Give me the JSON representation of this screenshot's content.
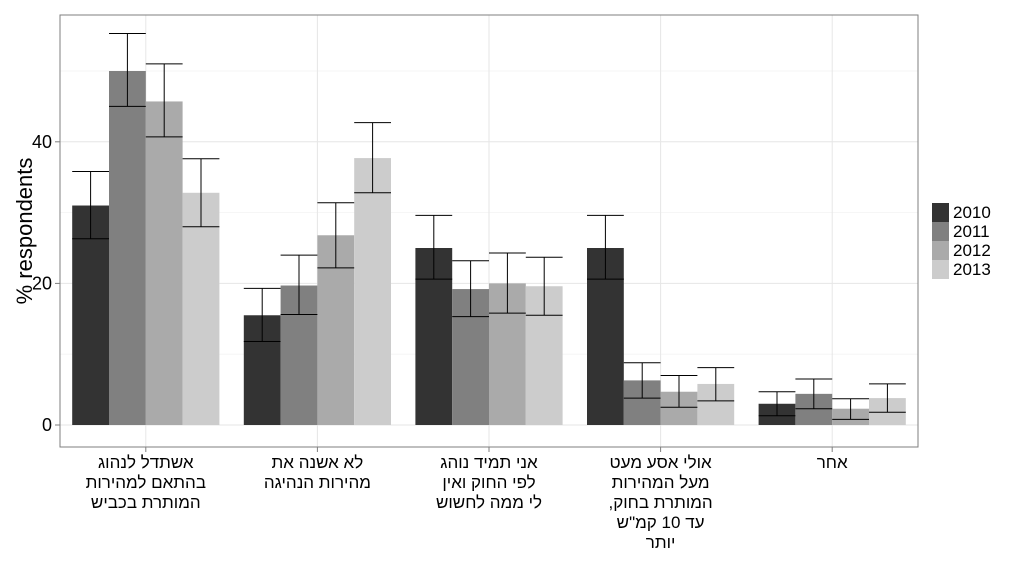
{
  "chart_data": {
    "type": "bar",
    "title": "",
    "xlabel": "",
    "ylabel": "% respondents",
    "ylim": [
      0,
      58
    ],
    "yticks": [
      0,
      20,
      40
    ],
    "grid": true,
    "legend_position": "right",
    "categories": [
      [
        "אשתדל לנהוג",
        "בהתאם למהירות",
        "המותרת בכביש"
      ],
      [
        "לא אשנה את",
        "מהירות הנהיגה"
      ],
      [
        "אני תמיד נוהג",
        "לפי החוק ואין",
        "לי ממה לחשוש"
      ],
      [
        "אולי אסע מעט",
        "מעל המהירות",
        "המותרת בחוק,",
        "עד 10 קמ\"ש",
        "יותר"
      ],
      [
        "אחר"
      ]
    ],
    "series": [
      {
        "name": "2010",
        "color": "#333333",
        "values": [
          31,
          15.5,
          25,
          25,
          3
        ],
        "err_low": [
          26.3,
          11.8,
          20.6,
          20.6,
          1.3
        ],
        "err_high": [
          35.8,
          19.3,
          29.6,
          29.6,
          4.7
        ]
      },
      {
        "name": "2011",
        "color": "#808080",
        "values": [
          50,
          19.7,
          19.2,
          6.3,
          4.4
        ],
        "err_low": [
          45,
          15.6,
          15.3,
          3.8,
          2.3
        ],
        "err_high": [
          55.3,
          24,
          23.2,
          8.8,
          6.5
        ]
      },
      {
        "name": "2012",
        "color": "#aaaaaa",
        "values": [
          45.7,
          26.8,
          20,
          4.7,
          2.3
        ],
        "err_low": [
          40.7,
          22.2,
          15.8,
          2.5,
          0.8
        ],
        "err_high": [
          51,
          31.4,
          24.3,
          7,
          3.7
        ]
      },
      {
        "name": "2013",
        "color": "#cccccc",
        "values": [
          32.8,
          37.7,
          19.6,
          5.8,
          3.8
        ],
        "err_low": [
          28,
          32.8,
          15.5,
          3.4,
          1.8
        ],
        "err_high": [
          37.6,
          42.7,
          23.7,
          8.1,
          5.8
        ]
      }
    ]
  }
}
